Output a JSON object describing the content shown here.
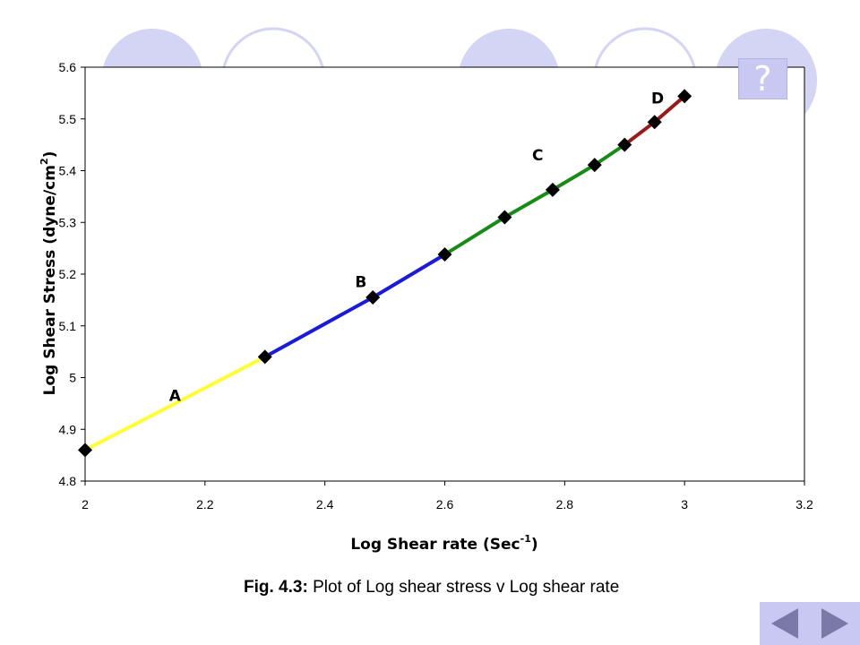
{
  "help_button": {
    "label": "?"
  },
  "caption": {
    "fig_no": "Fig. 4.3:",
    "text": " Plot of Log shear stress v Log shear rate"
  },
  "nav": {
    "prev_icon": "triangle-left-icon",
    "next_icon": "triangle-right-icon"
  },
  "colors": {
    "accent": "#c8c8f2",
    "nav_arrow": "#7a7aa8"
  },
  "chart_data": {
    "type": "line",
    "xlabel": "Log Shear rate (Sec",
    "xlabel_sup": "-1",
    "xlabel_end": ")",
    "ylabel": "Log Shear Stress (dyne/cm",
    "ylabel_sup": "2",
    "ylabel_end": ")",
    "xlim": [
      2,
      3.2
    ],
    "ylim": [
      4.8,
      5.6
    ],
    "xticks": [
      "2",
      "2.2",
      "2.4",
      "2.6",
      "2.8",
      "3",
      "3.2"
    ],
    "yticks": [
      "4.8",
      "4.9",
      "5",
      "5.1",
      "5.2",
      "5.3",
      "5.4",
      "5.5",
      "5.6"
    ],
    "grid": false,
    "legend": "none",
    "segments": [
      {
        "label": "A",
        "color": "#ffff33",
        "x": [
          2.0,
          2.3
        ],
        "y": [
          4.86,
          5.04
        ],
        "label_at": [
          2.15,
          4.955
        ]
      },
      {
        "label": "B",
        "color": "#1a1adc",
        "x": [
          2.3,
          2.48,
          2.6
        ],
        "y": [
          5.04,
          5.155,
          5.238
        ],
        "label_at": [
          2.46,
          5.175
        ]
      },
      {
        "label": "C",
        "color": "#168c16",
        "x": [
          2.6,
          2.7,
          2.78,
          2.85,
          2.9
        ],
        "y": [
          5.238,
          5.31,
          5.363,
          5.411,
          5.45
        ],
        "label_at": [
          2.755,
          5.42
        ]
      },
      {
        "label": "D",
        "color": "#9a1a1a",
        "x": [
          2.9,
          2.95,
          3.0
        ],
        "y": [
          5.45,
          5.494,
          5.544
        ],
        "label_at": [
          2.955,
          5.53
        ]
      }
    ],
    "points": {
      "x": [
        2.0,
        2.3,
        2.48,
        2.6,
        2.7,
        2.78,
        2.85,
        2.9,
        2.95,
        3.0
      ],
      "y": [
        4.86,
        5.04,
        5.155,
        5.238,
        5.31,
        5.363,
        5.411,
        5.45,
        5.494,
        5.544
      ]
    }
  }
}
